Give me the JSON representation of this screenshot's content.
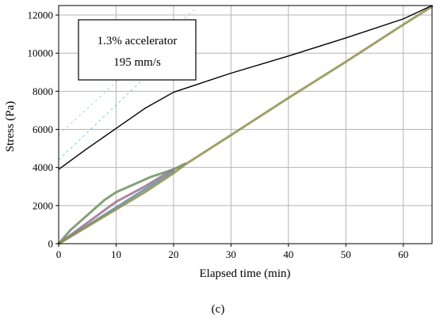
{
  "chart_data": {
    "type": "line",
    "xlabel": "Elapsed time (min)",
    "ylabel": "Stress (Pa)",
    "caption": "(c)",
    "xlim": [
      0,
      65
    ],
    "ylim": [
      0,
      12500
    ],
    "x_ticks": [
      0,
      10,
      20,
      30,
      40,
      50,
      60
    ],
    "y_ticks": [
      0,
      2000,
      4000,
      6000,
      8000,
      10000,
      12000
    ],
    "grid": true,
    "annotation_box": {
      "lines": [
        "1.3% accelerator",
        "195 mm/s"
      ]
    },
    "series": [
      {
        "color": "#000000",
        "x": [
          0,
          5,
          10,
          15,
          20,
          30,
          40,
          50,
          60,
          65
        ],
        "y": [
          3900,
          5000,
          6050,
          7100,
          7950,
          8950,
          9850,
          10800,
          11800,
          12500
        ]
      },
      {
        "color": "#6f8f5f",
        "x": [
          0,
          2,
          5,
          8,
          10,
          13,
          16,
          18,
          20,
          22
        ],
        "y": [
          0,
          700,
          1500,
          2300,
          2700,
          3100,
          3500,
          3700,
          3900,
          4200
        ]
      },
      {
        "color": "#a07090",
        "x": [
          0,
          5,
          10,
          15,
          18,
          20
        ],
        "y": [
          0,
          1100,
          2200,
          3000,
          3550,
          3900
        ]
      },
      {
        "color": "#5f8f9f",
        "x": [
          0,
          5,
          10,
          15,
          20
        ],
        "y": [
          0,
          950,
          1900,
          2850,
          3800
        ]
      },
      {
        "color": "#8f8f4f",
        "x": [
          0,
          5,
          10,
          15,
          20,
          22,
          30,
          40,
          50,
          60,
          65
        ],
        "y": [
          0,
          900,
          1800,
          2700,
          3700,
          4150,
          5700,
          7650,
          9550,
          11500,
          12450
        ]
      }
    ],
    "faint_dashed_lines": [
      {
        "color": "#40c8e8",
        "x": [
          0,
          24
        ],
        "y": [
          4400,
          11300
        ]
      },
      {
        "color": "#90c0f0",
        "x": [
          0,
          24
        ],
        "y": [
          5700,
          12400
        ]
      }
    ]
  }
}
